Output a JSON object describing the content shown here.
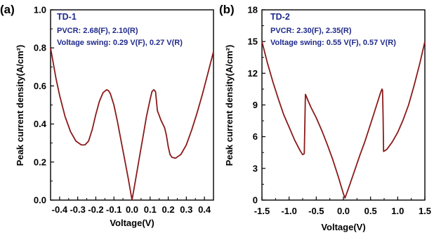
{
  "chart_data": [
    {
      "panel": "(a)",
      "type": "line",
      "title": "",
      "xlabel": "Voltage(V)",
      "ylabel": "Peak current density(A/cm²)",
      "xlim": [
        -0.45,
        0.45
      ],
      "ylim": [
        0.0,
        1.0
      ],
      "xticks": [
        -0.4,
        -0.3,
        -0.2,
        -0.1,
        0.0,
        0.1,
        0.2,
        0.3,
        0.4
      ],
      "xtick_labels": [
        "-0.4",
        "-0.3",
        "-0.2",
        "-0.1",
        "0.0",
        "0.1",
        "0.2",
        "0.3",
        "0.4"
      ],
      "yticks": [
        0.0,
        0.2,
        0.4,
        0.6,
        0.8,
        1.0
      ],
      "ytick_labels": [
        "0.0",
        "0.2",
        "0.4",
        "0.6",
        "0.8",
        "1.0"
      ],
      "grid": false,
      "line_color": "#8b1a1a",
      "annotations": {
        "title": "TD-1",
        "line1": "PVCR: 2.68(F), 2.10(R)",
        "line2": "Voltage swing: 0.29 V(F), 0.27 V(R)",
        "color": "#1f2a8c"
      },
      "series": [
        {
          "x": [
            -0.45,
            -0.42,
            -0.4,
            -0.37,
            -0.34,
            -0.31,
            -0.28,
            -0.26,
            -0.24,
            -0.22,
            -0.2,
            -0.18,
            -0.16,
            -0.14,
            -0.13,
            -0.12,
            -0.1,
            -0.08,
            -0.06,
            -0.04,
            -0.02,
            0.0,
            0.02,
            0.04,
            0.06,
            0.08,
            0.1,
            0.11,
            0.12,
            0.13,
            0.14,
            0.16,
            0.18,
            0.19,
            0.2,
            0.21,
            0.22,
            0.24,
            0.27,
            0.3,
            0.33,
            0.36,
            0.39,
            0.42,
            0.45
          ],
          "y": [
            0.8,
            0.64,
            0.55,
            0.44,
            0.36,
            0.31,
            0.29,
            0.29,
            0.31,
            0.37,
            0.45,
            0.52,
            0.565,
            0.58,
            0.575,
            0.56,
            0.5,
            0.41,
            0.31,
            0.21,
            0.11,
            0.0,
            0.11,
            0.22,
            0.33,
            0.44,
            0.53,
            0.57,
            0.58,
            0.57,
            0.47,
            0.42,
            0.38,
            0.34,
            0.28,
            0.24,
            0.225,
            0.22,
            0.24,
            0.29,
            0.37,
            0.46,
            0.56,
            0.67,
            0.78
          ]
        }
      ]
    },
    {
      "panel": "(b)",
      "type": "line",
      "title": "",
      "xlabel": "Voltage(V)",
      "ylabel": "Peak current density(A/cm²)",
      "xlim": [
        -1.5,
        1.5
      ],
      "ylim": [
        0,
        18
      ],
      "xticks": [
        -1.5,
        -1.0,
        -0.5,
        0.0,
        0.5,
        1.0,
        1.5
      ],
      "xtick_labels": [
        "-1.5",
        "-1.0",
        "-0.5",
        "0.0",
        "0.5",
        "1.0",
        "1.5"
      ],
      "yticks": [
        0,
        3,
        6,
        9,
        12,
        15,
        18
      ],
      "ytick_labels": [
        "0",
        "3",
        "6",
        "9",
        "12",
        "15",
        "18"
      ],
      "grid": false,
      "line_color": "#8b1a1a",
      "annotations": {
        "title": "TD-2",
        "line1": "PVCR: 2.30(F), 2.35(R)",
        "line2": "Voltage swing: 0.55 V(F), 0.57 V(R)",
        "color": "#1f2a8c"
      },
      "series": [
        {
          "x": [
            -1.5,
            -1.4,
            -1.3,
            -1.2,
            -1.1,
            -1.0,
            -0.9,
            -0.8,
            -0.75,
            -0.72,
            -0.71,
            -0.7,
            -0.69,
            -0.65,
            -0.6,
            -0.5,
            -0.4,
            -0.3,
            -0.2,
            -0.1,
            0.0,
            0.03,
            0.1,
            0.2,
            0.3,
            0.4,
            0.5,
            0.6,
            0.68,
            0.71,
            0.72,
            0.73,
            0.74,
            0.8,
            0.9,
            1.0,
            1.1,
            1.2,
            1.3,
            1.4,
            1.5
          ],
          "y": [
            15.0,
            13.0,
            11.2,
            9.6,
            8.1,
            6.9,
            5.7,
            4.7,
            4.3,
            4.4,
            7.2,
            10.0,
            9.9,
            9.4,
            8.8,
            7.8,
            6.6,
            5.3,
            3.9,
            2.3,
            0.6,
            0.2,
            1.2,
            2.7,
            4.2,
            5.6,
            7.2,
            8.8,
            10.1,
            10.5,
            10.4,
            8.0,
            4.6,
            4.8,
            5.5,
            6.4,
            7.6,
            9.0,
            10.8,
            12.8,
            15.0
          ]
        }
      ]
    }
  ]
}
